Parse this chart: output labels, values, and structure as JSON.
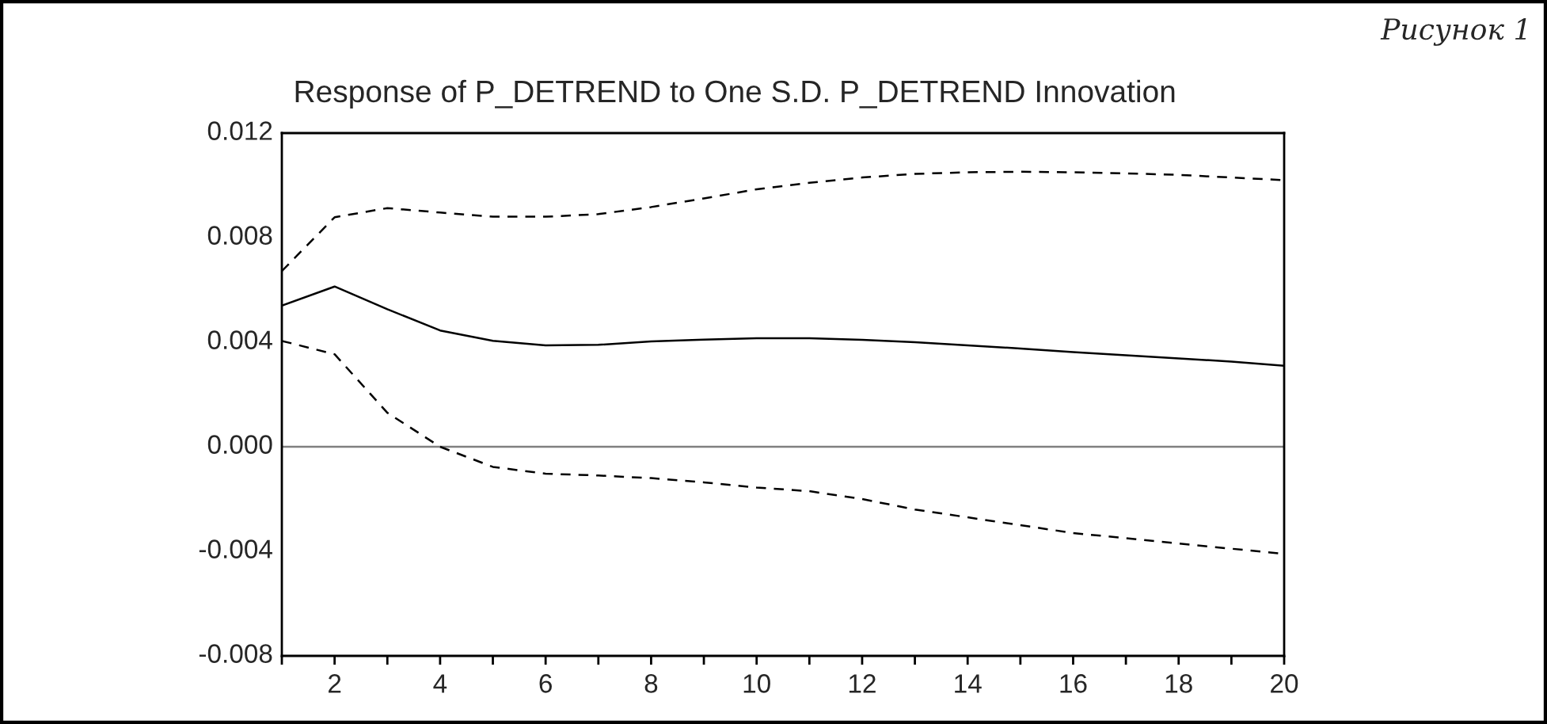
{
  "chart_data": {
    "type": "line",
    "title": "Response of P_DETREND to One S.D. P_DETREND Innovation",
    "x": [
      1,
      2,
      3,
      4,
      5,
      6,
      7,
      8,
      9,
      10,
      11,
      12,
      13,
      14,
      15,
      16,
      17,
      18,
      19,
      20
    ],
    "series": [
      {
        "color": "#000000",
        "line_style": "solid",
        "values": [
          0.0054,
          0.00613,
          0.00526,
          0.00445,
          0.00405,
          0.00388,
          0.0039,
          0.00403,
          0.0041,
          0.00415,
          0.00415,
          0.00409,
          0.004,
          0.00388,
          0.00376,
          0.00362,
          0.0035,
          0.00338,
          0.00326,
          0.0031
        ]
      },
      {
        "color": "#000000",
        "line_style": "dashed",
        "values": [
          0.00672,
          0.00878,
          0.00913,
          0.00896,
          0.0088,
          0.0088,
          0.0089,
          0.00917,
          0.0095,
          0.00985,
          0.0101,
          0.0103,
          0.01044,
          0.0105,
          0.01052,
          0.0105,
          0.01046,
          0.0104,
          0.0103,
          0.0102
        ]
      },
      {
        "color": "#000000",
        "line_style": "dashed",
        "values": [
          0.00405,
          0.00354,
          0.0013,
          0.0,
          -0.00077,
          -0.00103,
          -0.0011,
          -0.0012,
          -0.00136,
          -0.00156,
          -0.0017,
          -0.002,
          -0.0024,
          -0.0027,
          -0.003,
          -0.0033,
          -0.0035,
          -0.0037,
          -0.0039,
          -0.0041
        ]
      }
    ],
    "xlim": [
      1,
      20
    ],
    "xticks": [
      {
        "value": 1,
        "label": null
      },
      2,
      {
        "value": 3,
        "label": null
      },
      4,
      {
        "value": 5,
        "label": null
      },
      6,
      {
        "value": 7,
        "label": null
      },
      8,
      {
        "value": 9,
        "label": null
      },
      10,
      {
        "value": 11,
        "label": null
      },
      12,
      {
        "value": 13,
        "label": null
      },
      14,
      {
        "value": 15,
        "label": null
      },
      16,
      {
        "value": 17,
        "label": null
      },
      18,
      {
        "value": 19,
        "label": null
      },
      20
    ],
    "ylim": [
      -0.008,
      0.012
    ],
    "yticks": [
      {
        "value": -0.008,
        "label": "-0.008"
      },
      {
        "value": -0.004,
        "label": "-0.004"
      },
      {
        "value": 0.0,
        "label": "0.000"
      },
      {
        "value": 0.004,
        "label": "0.004"
      },
      {
        "value": 0.008,
        "label": "0.008"
      },
      {
        "value": 0.012,
        "label": "0.012"
      }
    ],
    "ref_lines": [
      {
        "axis": "y",
        "value": 0,
        "color": "#808080"
      }
    ],
    "grid": false,
    "legend": false,
    "marker": "none",
    "annotations": [
      "Рисунок 1"
    ]
  }
}
